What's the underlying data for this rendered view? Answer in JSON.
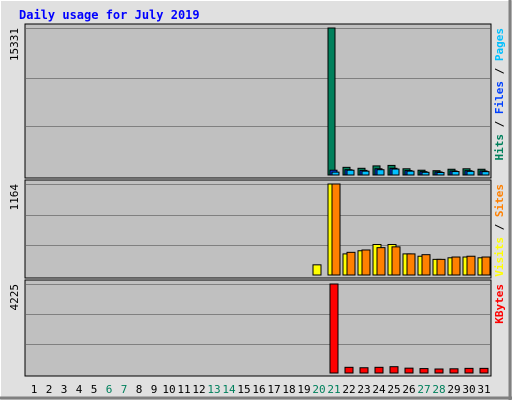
{
  "colors": {
    "hits": "#00805c",
    "files": "#0040ff",
    "pages": "#00c0ff",
    "visits": "#ffff00",
    "sites": "#ff8000",
    "kbytes": "#ff0000",
    "title": "#0000ff",
    "plot_bg": "#c0c0c0",
    "frame_bg": "#e0e0e0",
    "weekend_label": "#00805c"
  },
  "chart_data": {
    "type": "bar",
    "title": "Daily usage for July 2019",
    "categories": [
      "1",
      "2",
      "3",
      "4",
      "5",
      "6",
      "7",
      "8",
      "9",
      "10",
      "11",
      "12",
      "13",
      "14",
      "15",
      "16",
      "17",
      "18",
      "19",
      "20",
      "21",
      "22",
      "23",
      "24",
      "25",
      "26",
      "27",
      "28",
      "29",
      "30",
      "31"
    ],
    "weekend_days": [
      "6",
      "7",
      "13",
      "14",
      "20",
      "21",
      "27",
      "28"
    ],
    "panels": [
      {
        "id": "hits-panel",
        "ymax_label": "15331",
        "ylim": [
          0,
          15331
        ],
        "legend": [
          {
            "name": "Hits",
            "color_key": "hits"
          },
          {
            "name": "Files",
            "color_key": "files"
          },
          {
            "name": "Pages",
            "color_key": "pages"
          }
        ],
        "series": [
          {
            "name": "Hits",
            "color_key": "hits",
            "values": [
              0,
              0,
              0,
              0,
              0,
              0,
              0,
              0,
              0,
              0,
              0,
              0,
              0,
              0,
              0,
              0,
              0,
              0,
              0,
              0,
              15331,
              800,
              700,
              950,
              1000,
              650,
              500,
              450,
              600,
              650,
              600
            ]
          },
          {
            "name": "Files",
            "color_key": "files",
            "values": [
              0,
              0,
              0,
              0,
              0,
              0,
              0,
              0,
              0,
              0,
              0,
              0,
              0,
              0,
              0,
              0,
              0,
              0,
              0,
              0,
              500,
              550,
              480,
              650,
              700,
              460,
              350,
              320,
              420,
              450,
              420
            ]
          },
          {
            "name": "Pages",
            "color_key": "pages",
            "values": [
              0,
              0,
              0,
              0,
              0,
              0,
              0,
              0,
              0,
              0,
              0,
              0,
              0,
              0,
              0,
              0,
              0,
              0,
              0,
              0,
              300,
              500,
              400,
              550,
              620,
              400,
              280,
              260,
              360,
              380,
              350
            ]
          }
        ]
      },
      {
        "id": "visits-panel",
        "ymax_label": "1164",
        "ylim": [
          0,
          1164
        ],
        "legend": [
          {
            "name": "Visits",
            "color_key": "visits"
          },
          {
            "name": "Sites",
            "color_key": "sites"
          }
        ],
        "series": [
          {
            "name": "Visits",
            "color_key": "visits",
            "values": [
              0,
              0,
              0,
              0,
              0,
              0,
              0,
              0,
              0,
              0,
              0,
              0,
              0,
              0,
              0,
              0,
              0,
              0,
              0,
              130,
              1164,
              270,
              310,
              390,
              390,
              270,
              240,
              200,
              220,
              230,
              220
            ]
          },
          {
            "name": "Sites",
            "color_key": "sites",
            "values": [
              0,
              0,
              0,
              0,
              0,
              0,
              0,
              0,
              0,
              0,
              0,
              0,
              0,
              0,
              0,
              0,
              0,
              0,
              0,
              0,
              1164,
              290,
              320,
              350,
              360,
              270,
              260,
              200,
              230,
              240,
              230
            ]
          }
        ]
      },
      {
        "id": "kbytes-panel",
        "ymax_label": "4225",
        "ylim": [
          0,
          4225
        ],
        "legend": [
          {
            "name": "KBytes",
            "color_key": "kbytes"
          }
        ],
        "series": [
          {
            "name": "KBytes",
            "color_key": "kbytes",
            "values": [
              0,
              0,
              0,
              0,
              0,
              0,
              0,
              0,
              0,
              0,
              0,
              0,
              0,
              0,
              0,
              0,
              0,
              0,
              0,
              0,
              4225,
              270,
              250,
              270,
              300,
              230,
              210,
              190,
              200,
              220,
              220
            ]
          }
        ]
      }
    ]
  }
}
